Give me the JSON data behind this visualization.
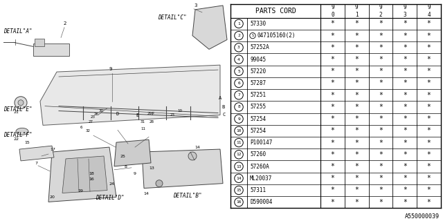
{
  "bg_color": "#ffffff",
  "col_header": "PARTS CORD",
  "year_cols": [
    "9\n0",
    "9\n1",
    "9\n2",
    "9\n3",
    "9\n4"
  ],
  "rows": [
    {
      "num": "1",
      "part": "57330",
      "special": false,
      "marks": [
        "*",
        "*",
        "*",
        "*",
        "*"
      ]
    },
    {
      "num": "2",
      "part": "047105160(2)",
      "special": true,
      "marks": [
        "*",
        "*",
        "*",
        "*",
        "*"
      ]
    },
    {
      "num": "3",
      "part": "57252A",
      "special": false,
      "marks": [
        "*",
        "*",
        "*",
        "*",
        "*"
      ]
    },
    {
      "num": "4",
      "part": "99045",
      "special": false,
      "marks": [
        "*",
        "*",
        "*",
        "*",
        "*"
      ]
    },
    {
      "num": "5",
      "part": "57220",
      "special": false,
      "marks": [
        "*",
        "*",
        "*",
        "*",
        "*"
      ]
    },
    {
      "num": "6",
      "part": "57287",
      "special": false,
      "marks": [
        "*",
        "*",
        "*",
        "*",
        "*"
      ]
    },
    {
      "num": "7",
      "part": "57251",
      "special": false,
      "marks": [
        "*",
        "*",
        "*",
        "*",
        "*"
      ]
    },
    {
      "num": "8",
      "part": "57255",
      "special": false,
      "marks": [
        "*",
        "*",
        "*",
        "*",
        "*"
      ]
    },
    {
      "num": "9",
      "part": "57254",
      "special": false,
      "marks": [
        "*",
        "*",
        "*",
        "*",
        "*"
      ]
    },
    {
      "num": "10",
      "part": "57254",
      "special": false,
      "marks": [
        "*",
        "*",
        "*",
        "*",
        "*"
      ]
    },
    {
      "num": "11",
      "part": "P100147",
      "special": false,
      "marks": [
        "*",
        "*",
        "*",
        "*",
        "*"
      ]
    },
    {
      "num": "12",
      "part": "57260",
      "special": false,
      "marks": [
        "*",
        "*",
        "*",
        "*",
        "*"
      ]
    },
    {
      "num": "13",
      "part": "57260A",
      "special": false,
      "marks": [
        "*",
        "*",
        "*",
        "*",
        "*"
      ]
    },
    {
      "num": "14",
      "part": "ML20037",
      "special": false,
      "marks": [
        "*",
        "*",
        "*",
        "*",
        "*"
      ]
    },
    {
      "num": "15",
      "part": "57311",
      "special": false,
      "marks": [
        "*",
        "*",
        "*",
        "*",
        "*"
      ]
    },
    {
      "num": "16",
      "part": "D590004",
      "special": false,
      "marks": [
        "*",
        "*",
        "*",
        "*",
        "*"
      ]
    }
  ],
  "footer_code": "A550000039",
  "line_color": "#444444",
  "text_color": "#000000",
  "table_line_color": "#000000"
}
